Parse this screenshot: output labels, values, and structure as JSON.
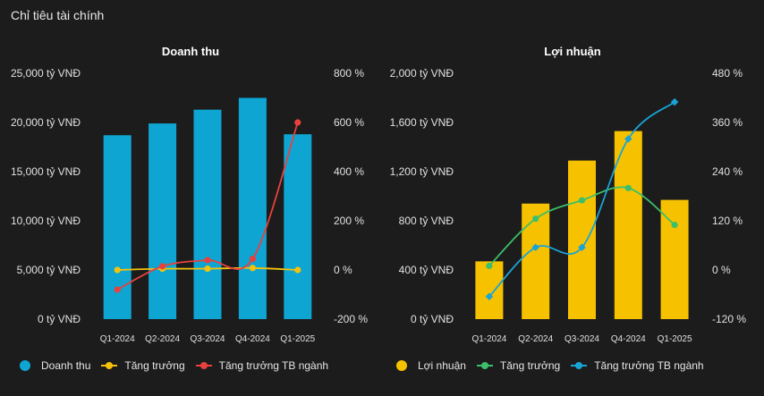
{
  "page": {
    "title": "Chỉ tiêu tài chính"
  },
  "chart_data": [
    {
      "type": "bar",
      "title": "Doanh thu",
      "categories": [
        "Q1-2024",
        "Q2-2024",
        "Q3-2024",
        "Q4-2024",
        "Q1-2025"
      ],
      "ylim": [
        0,
        25000
      ],
      "y_ticks": [
        "0 tỷ VNĐ",
        "5,000 tỷ VNĐ",
        "10,000 tỷ VNĐ",
        "15,000 tỷ VNĐ",
        "20,000 tỷ VNĐ",
        "25,000 tỷ VNĐ"
      ],
      "y2lim": [
        -200,
        800
      ],
      "y2_ticks": [
        "-200 %",
        "0 %",
        "200 %",
        "400 %",
        "600 %",
        "800 %"
      ],
      "grid": false,
      "legend_position": "bottom-left",
      "series": [
        {
          "name": "Doanh thu",
          "kind": "bar",
          "axis": "left",
          "color": "#0ea5d3",
          "values": [
            18700,
            19900,
            21300,
            22500,
            18800
          ]
        },
        {
          "name": "Tăng trưởng",
          "kind": "line",
          "axis": "right",
          "color": "#f4c20d",
          "values": [
            0,
            5,
            5,
            8,
            0
          ]
        },
        {
          "name": "Tăng trưởng TB ngành",
          "kind": "line",
          "axis": "right",
          "color": "#e8413c",
          "values": [
            -80,
            15,
            40,
            45,
            600
          ]
        }
      ]
    },
    {
      "type": "bar",
      "title": "Lợi nhuận",
      "categories": [
        "Q1-2024",
        "Q2-2024",
        "Q3-2024",
        "Q4-2024",
        "Q1-2025"
      ],
      "ylim": [
        0,
        2000
      ],
      "y_ticks": [
        "0 tỷ VNĐ",
        "400 tỷ VNĐ",
        "800 tỷ VNĐ",
        "1,200 tỷ VNĐ",
        "1,600 tỷ VNĐ",
        "2,000 tỷ VNĐ"
      ],
      "y2lim": [
        -120,
        480
      ],
      "y2_ticks": [
        "-120 %",
        "0 %",
        "120 %",
        "240 %",
        "360 %",
        "480 %"
      ],
      "grid": false,
      "legend_position": "bottom-left",
      "series": [
        {
          "name": "Lợi nhuận",
          "kind": "bar",
          "axis": "left",
          "color": "#f6c200",
          "values": [
            470,
            940,
            1290,
            1530,
            970
          ]
        },
        {
          "name": "Tăng trưởng",
          "kind": "line",
          "axis": "right",
          "color": "#3cbf6a",
          "values": [
            10,
            125,
            170,
            200,
            110
          ]
        },
        {
          "name": "Tăng trưởng TB ngành",
          "kind": "line",
          "axis": "right",
          "color": "#1aa3d6",
          "values": [
            -65,
            55,
            55,
            320,
            410
          ]
        }
      ]
    }
  ]
}
